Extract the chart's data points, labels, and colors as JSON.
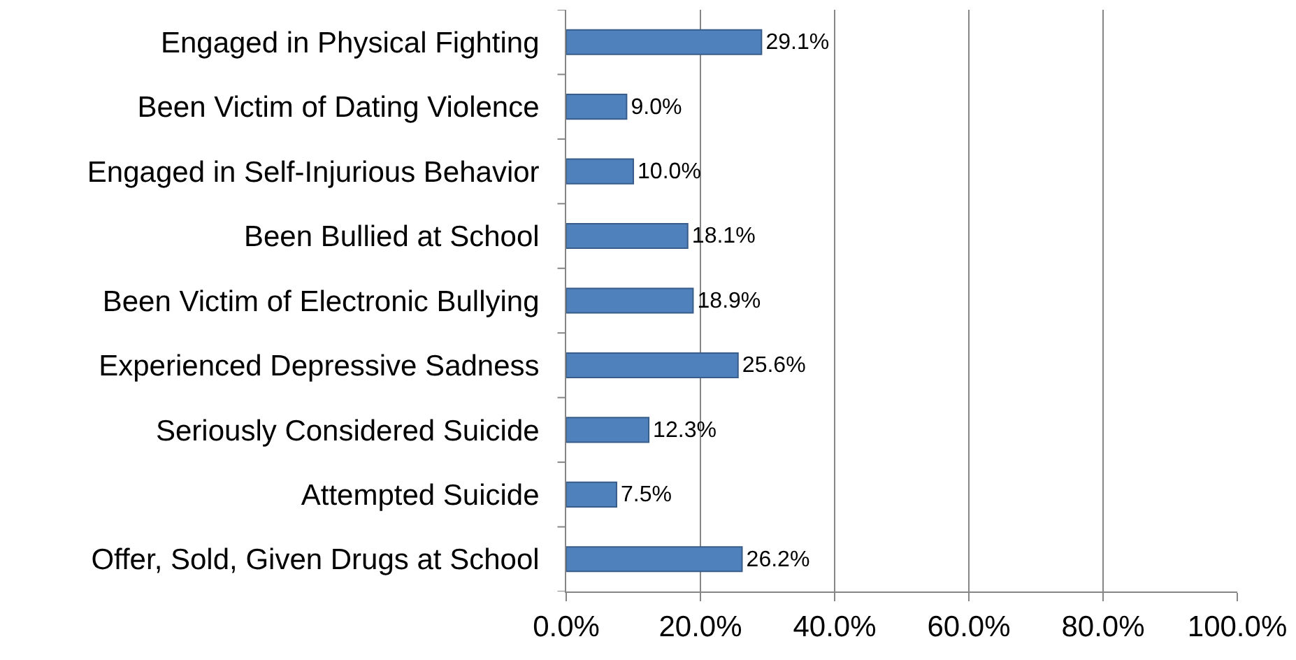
{
  "chart_data": {
    "type": "bar",
    "orientation": "horizontal",
    "categories": [
      "Engaged in Physical Fighting",
      "Been Victim of Dating Violence",
      "Engaged in Self-Injurious Behavior",
      "Been Bullied at School",
      "Been Victim of Electronic Bullying",
      "Experienced Depressive Sadness",
      "Seriously Considered Suicide",
      "Attempted Suicide",
      "Offer, Sold, Given Drugs at School"
    ],
    "values": [
      29.1,
      9.0,
      10.0,
      18.1,
      18.9,
      25.6,
      12.3,
      7.5,
      26.2
    ],
    "value_labels": [
      "29.1%",
      "9.0%",
      "10.0%",
      "18.1%",
      "18.9%",
      "25.6%",
      "12.3%",
      "7.5%",
      "26.2%"
    ],
    "color": "#4f81bd",
    "xlim": [
      0,
      100
    ],
    "xticks": [
      {
        "value": 0,
        "label": "0.0%"
      },
      {
        "value": 20,
        "label": "20.0%"
      },
      {
        "value": 40,
        "label": "40.0%"
      },
      {
        "value": 60,
        "label": "60.0%"
      },
      {
        "value": 80,
        "label": "80.0%"
      },
      {
        "value": 100,
        "label": "100.0%"
      }
    ],
    "grid": "x",
    "legend": false
  }
}
